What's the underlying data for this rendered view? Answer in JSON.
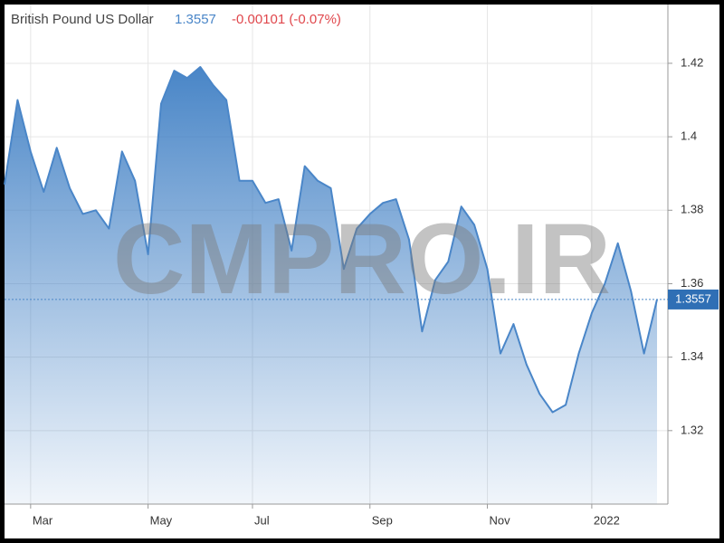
{
  "chart_data": {
    "type": "area",
    "title": "British Pound US Dollar",
    "price": 1.3557,
    "change": "-0.00101 (-0.07%)",
    "watermark": "CMPRO.IR",
    "categories": [
      null,
      null,
      "Mar",
      null,
      null,
      null,
      null,
      null,
      null,
      null,
      null,
      "May",
      null,
      null,
      null,
      null,
      null,
      null,
      null,
      "Jul",
      null,
      null,
      null,
      null,
      null,
      null,
      null,
      null,
      "Sep",
      null,
      null,
      null,
      null,
      null,
      null,
      null,
      null,
      "Nov",
      null,
      null,
      null,
      null,
      null,
      null,
      null,
      "2022",
      null,
      null,
      null,
      null,
      null
    ],
    "series": [
      {
        "name": "British Pound US Dollar",
        "color": "#4a86c8",
        "values": [
          1.387,
          1.41,
          1.396,
          1.385,
          1.397,
          1.386,
          1.379,
          1.38,
          1.375,
          1.396,
          1.388,
          1.368,
          1.409,
          1.418,
          1.416,
          1.419,
          1.414,
          1.41,
          1.388,
          1.388,
          1.382,
          1.383,
          1.369,
          1.392,
          1.388,
          1.386,
          1.364,
          1.375,
          1.379,
          1.382,
          1.383,
          1.372,
          1.347,
          1.361,
          1.366,
          1.381,
          1.376,
          1.364,
          1.341,
          1.349,
          1.338,
          1.33,
          1.325,
          1.327,
          1.341,
          1.352,
          1.36,
          1.371,
          1.358,
          1.341,
          1.3557
        ]
      }
    ],
    "ylim": [
      1.3,
      1.436
    ],
    "yticks": [
      1.32,
      1.34,
      1.36,
      1.38,
      1.4,
      1.42
    ],
    "grid": true
  }
}
